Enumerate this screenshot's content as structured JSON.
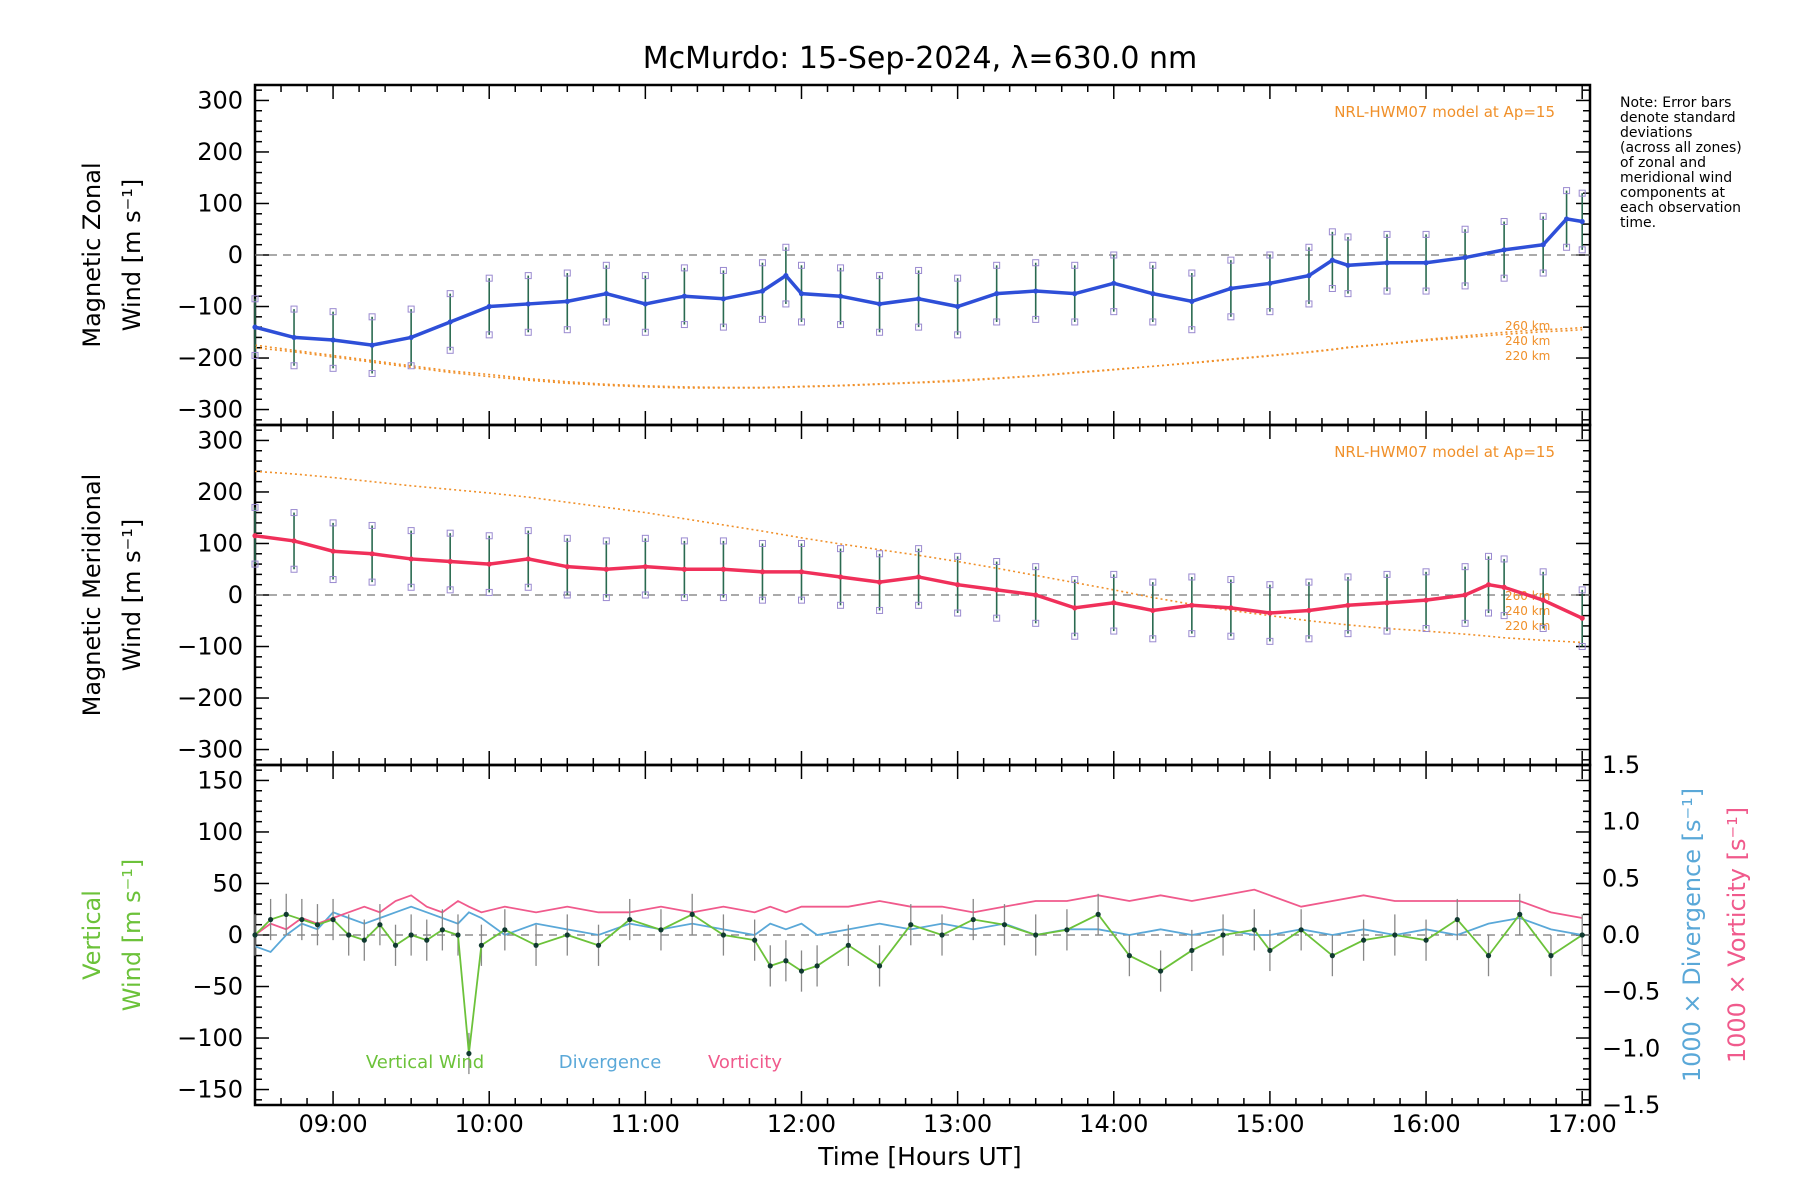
{
  "title": "McMurdo: 15-Sep-2024, λ=630.0 nm",
  "note": [
    "Note: Error bars",
    "denote standard",
    "deviations",
    "(across all zones)",
    "of zonal and",
    "meridional wind",
    "components at",
    "each observation",
    "time."
  ],
  "colors": {
    "zonal": "#2e4fd8",
    "meridional": "#f0305a",
    "vertical": "#6cc23a",
    "divergence": "#5aa8d8",
    "vorticity": "#f05a8c",
    "model": "#f0902a",
    "errorbar": "#2a6a50",
    "scatter": "#9a8ad0"
  },
  "chart_data": [
    {
      "type": "line",
      "id": "zonal",
      "ylabel": [
        "Magnetic Zonal",
        "Wind [m s⁻¹]"
      ],
      "ylim": [
        -330,
        330
      ],
      "yticks": [
        -300,
        -200,
        -100,
        0,
        100,
        200,
        300
      ],
      "model_label": "NRL-HWM07 model at Ap=15",
      "model_altitudes": [
        "260 km",
        "240 km",
        "220 km"
      ],
      "x": [
        8.5,
        8.75,
        9.0,
        9.25,
        9.5,
        9.75,
        10.0,
        10.25,
        10.5,
        10.75,
        11.0,
        11.25,
        11.5,
        11.75,
        11.9,
        12.0,
        12.25,
        12.5,
        12.75,
        13.0,
        13.25,
        13.5,
        13.75,
        14.0,
        14.25,
        14.5,
        14.75,
        15.0,
        15.25,
        15.4,
        15.5,
        15.75,
        16.0,
        16.25,
        16.5,
        16.75,
        16.9,
        17.0
      ],
      "series": [
        {
          "values": [
            -140,
            -160,
            -165,
            -175,
            -160,
            -130,
            -100,
            -95,
            -90,
            -75,
            -95,
            -80,
            -85,
            -70,
            -40,
            -75,
            -80,
            -95,
            -85,
            -100,
            -75,
            -70,
            -75,
            -55,
            -75,
            -90,
            -65,
            -55,
            -40,
            -10,
            -20,
            -15,
            -15,
            -5,
            10,
            20,
            70,
            65
          ]
        },
        {
          "values": [
            -175,
            -185,
            -195,
            -205,
            -215,
            -225,
            -232,
            -240,
            -246,
            -251,
            -254,
            -256,
            -257,
            -257,
            -256,
            -255,
            -253,
            -250,
            -247,
            -243,
            -239,
            -234,
            -228,
            -222,
            -216,
            -209,
            -202,
            -195,
            -188,
            -183,
            -179,
            -172,
            -164,
            -157,
            -150,
            -145,
            -143,
            -141
          ]
        },
        {
          "values": [
            -180,
            -188,
            -198,
            -208,
            -218,
            -228,
            -236,
            -243,
            -249,
            -253,
            -256,
            -258,
            -258,
            -258,
            -257,
            -256,
            -254,
            -251,
            -248,
            -245,
            -240,
            -235,
            -229,
            -223,
            -216,
            -210,
            -203,
            -196,
            -189,
            -184,
            -180,
            -173,
            -166,
            -160,
            -154,
            -149,
            -147,
            -145
          ]
        }
      ]
    },
    {
      "type": "line",
      "id": "meridional",
      "ylabel": [
        "Magnetic Meridional",
        "Wind [m s⁻¹]"
      ],
      "ylim": [
        -330,
        330
      ],
      "yticks": [
        -300,
        -200,
        -100,
        0,
        100,
        200,
        300
      ],
      "model_label": "NRL-HWM07 model at Ap=15",
      "model_altitudes": [
        "260 km",
        "240 km",
        "220 km"
      ],
      "x": [
        8.5,
        8.75,
        9.0,
        9.25,
        9.5,
        9.75,
        10.0,
        10.25,
        10.5,
        10.75,
        11.0,
        11.25,
        11.5,
        11.75,
        12.0,
        12.25,
        12.5,
        12.75,
        13.0,
        13.25,
        13.5,
        13.75,
        14.0,
        14.25,
        14.5,
        14.75,
        15.0,
        15.25,
        15.5,
        15.75,
        16.0,
        16.25,
        16.4,
        16.5,
        16.75,
        17.0
      ],
      "series": [
        {
          "values": [
            115,
            105,
            85,
            80,
            70,
            65,
            60,
            70,
            55,
            50,
            55,
            50,
            50,
            45,
            45,
            35,
            25,
            35,
            20,
            10,
            0,
            -25,
            -15,
            -30,
            -20,
            -25,
            -35,
            -30,
            -20,
            -15,
            -10,
            0,
            20,
            15,
            -10,
            -45
          ]
        },
        {
          "values": [
            240,
            235,
            228,
            220,
            212,
            205,
            198,
            190,
            180,
            170,
            160,
            148,
            136,
            124,
            111,
            99,
            88,
            77,
            65,
            52,
            38,
            24,
            10,
            -5,
            -18,
            -30,
            -40,
            -50,
            -58,
            -65,
            -70,
            -76,
            -80,
            -83,
            -88,
            -92
          ]
        }
      ]
    },
    {
      "type": "line",
      "id": "vertical",
      "ylabel": [
        "Vertical",
        "Wind [m s⁻¹]"
      ],
      "ylabel_right_div": "1000 × Divergence [s⁻¹]",
      "ylabel_right_vort": "1000 × Vorticity [s⁻¹]",
      "ylim": [
        -165,
        165
      ],
      "yticks": [
        -150,
        -100,
        -50,
        0,
        50,
        100,
        150
      ],
      "y2lim": [
        -1.5,
        1.5
      ],
      "y2ticks": [
        "−1.5",
        "−1.0",
        "−0.5",
        "0.0",
        "0.5",
        "1.0",
        "1.5"
      ],
      "legend": [
        "Vertical Wind",
        "Divergence",
        "Vorticity"
      ],
      "x": [
        8.5,
        8.6,
        8.7,
        8.8,
        8.9,
        9.0,
        9.1,
        9.2,
        9.3,
        9.4,
        9.5,
        9.6,
        9.7,
        9.8,
        9.87,
        9.95,
        10.1,
        10.3,
        10.5,
        10.7,
        10.9,
        11.1,
        11.3,
        11.5,
        11.7,
        11.8,
        11.9,
        12.0,
        12.1,
        12.3,
        12.5,
        12.7,
        12.9,
        13.1,
        13.3,
        13.5,
        13.7,
        13.9,
        14.1,
        14.3,
        14.5,
        14.7,
        14.9,
        15.0,
        15.2,
        15.4,
        15.6,
        15.8,
        16.0,
        16.2,
        16.4,
        16.6,
        16.8,
        17.0
      ],
      "series": [
        {
          "name": "Vertical Wind",
          "values": [
            0,
            15,
            20,
            15,
            10,
            15,
            0,
            -5,
            10,
            -10,
            0,
            -5,
            5,
            0,
            -115,
            -10,
            5,
            -10,
            0,
            -10,
            15,
            5,
            20,
            0,
            -5,
            -30,
            -25,
            -35,
            -30,
            -10,
            -30,
            10,
            0,
            15,
            10,
            0,
            5,
            20,
            -20,
            -35,
            -15,
            0,
            5,
            -15,
            5,
            -20,
            -5,
            0,
            -5,
            15,
            -20,
            20,
            -20,
            0
          ]
        },
        {
          "name": "Divergence",
          "values": [
            -0.1,
            -0.15,
            0.0,
            0.1,
            0.05,
            0.2,
            0.15,
            0.1,
            0.15,
            0.2,
            0.25,
            0.2,
            0.15,
            0.1,
            0.2,
            0.15,
            0.0,
            0.1,
            0.05,
            0.0,
            0.1,
            0.05,
            0.1,
            0.05,
            0.0,
            0.1,
            0.05,
            0.1,
            0.0,
            0.05,
            0.1,
            0.05,
            0.1,
            0.05,
            0.1,
            0.0,
            0.05,
            0.05,
            0.0,
            0.05,
            0.0,
            0.05,
            0.0,
            0.0,
            0.05,
            0.0,
            0.05,
            0.0,
            0.05,
            0.0,
            0.1,
            0.15,
            0.05,
            0.0
          ]
        },
        {
          "name": "Vorticity",
          "values": [
            0.0,
            0.1,
            0.05,
            0.15,
            0.1,
            0.15,
            0.2,
            0.25,
            0.2,
            0.3,
            0.35,
            0.25,
            0.2,
            0.3,
            0.25,
            0.2,
            0.25,
            0.2,
            0.25,
            0.2,
            0.2,
            0.25,
            0.2,
            0.25,
            0.2,
            0.25,
            0.2,
            0.25,
            0.25,
            0.25,
            0.3,
            0.25,
            0.25,
            0.2,
            0.25,
            0.3,
            0.3,
            0.35,
            0.3,
            0.35,
            0.3,
            0.35,
            0.4,
            0.35,
            0.25,
            0.3,
            0.35,
            0.3,
            0.3,
            0.3,
            0.3,
            0.3,
            0.2,
            0.15
          ]
        }
      ]
    }
  ],
  "x_axis": {
    "xlim": [
      8.5,
      17.05
    ],
    "ticks": [
      9,
      10,
      11,
      12,
      13,
      14,
      15,
      16,
      17
    ],
    "tick_labels": [
      "09:00",
      "10:00",
      "11:00",
      "12:00",
      "13:00",
      "14:00",
      "15:00",
      "16:00",
      "17:00"
    ],
    "label": "Time [Hours UT]"
  }
}
